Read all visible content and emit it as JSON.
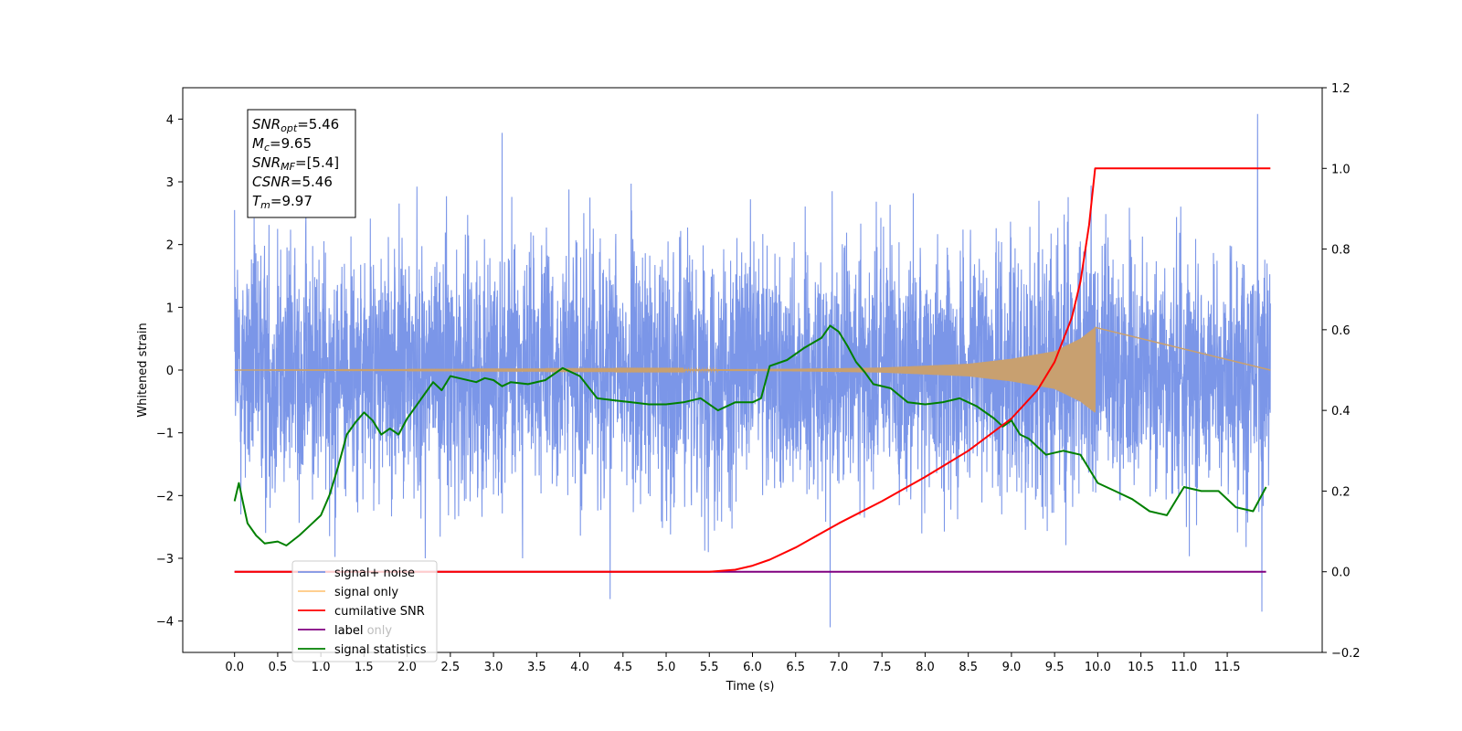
{
  "chart_data": {
    "type": "line",
    "title": "",
    "xlabel": "Time (s)",
    "ylabel": "Whitened strain",
    "xlim": [
      -0.6,
      12.6
    ],
    "ylim": [
      -4.5,
      4.5
    ],
    "y2lim": [
      -0.2,
      1.2
    ],
    "x_ticks": [
      "0.0",
      "0.5",
      "1.0",
      "1.5",
      "2.0",
      "2.5",
      "3.0",
      "3.5",
      "4.0",
      "4.5",
      "5.0",
      "5.5",
      "6.0",
      "6.5",
      "7.0",
      "7.5",
      "8.0",
      "8.5",
      "9.0",
      "9.5",
      "10.0",
      "10.5",
      "11.0",
      "11.5"
    ],
    "y_ticks": [
      "−4",
      "−3",
      "−2",
      "−1",
      "0",
      "1",
      "2",
      "3",
      "4"
    ],
    "y2_ticks": [
      "−0.2",
      "0.0",
      "0.2",
      "0.4",
      "0.6",
      "0.8",
      "1.0",
      "1.2"
    ],
    "info_box": [
      {
        "sym": "SNR",
        "sub": "opt",
        "value": "=5.46"
      },
      {
        "sym": "M",
        "sub": "c",
        "value": "=9.65"
      },
      {
        "sym": "SNR",
        "sub": "MF",
        "value": "=[5.4]"
      },
      {
        "sym": "CSNR",
        "sub": "",
        "value": "=5.46"
      },
      {
        "sym": "T",
        "sub": "m",
        "value": "=9.97"
      }
    ],
    "legend": {
      "placement": "lower-left",
      "entries": [
        {
          "label": "signal+ noise",
          "color": "#7b96e8"
        },
        {
          "label": "signal only",
          "color": "#ffc880"
        },
        {
          "label": "cumilative SNR",
          "color": "#ff0000"
        },
        {
          "label": "label",
          "color": "#800080"
        },
        {
          "label": "signal statistics",
          "color": "#008000"
        }
      ],
      "hidden_text": "label only"
    },
    "series": [
      {
        "name": "signal+ noise",
        "axis": "left",
        "color": "#7b96e8",
        "x_range": [
          0.0,
          12.0
        ],
        "dense_random_amplitude": 1.0,
        "extremes": [
          {
            "x": 3.1,
            "y": 3.78
          },
          {
            "x": 11.85,
            "y": 4.08
          },
          {
            "x": 6.9,
            "y": -4.1
          },
          {
            "x": 11.9,
            "y": -3.85
          },
          {
            "x": 4.35,
            "y": -3.65
          },
          {
            "x": 0.0,
            "y": 2.55
          }
        ]
      },
      {
        "name": "signal only",
        "axis": "left",
        "color": "#c8a070",
        "x_range": [
          0.0,
          9.97
        ],
        "envelope": [
          [
            0.0,
            0.0
          ],
          [
            5.5,
            0.01
          ],
          [
            6.5,
            0.02
          ],
          [
            7.5,
            0.04
          ],
          [
            8.5,
            0.1
          ],
          [
            9.0,
            0.18
          ],
          [
            9.5,
            0.3
          ],
          [
            9.8,
            0.5
          ],
          [
            9.97,
            0.68
          ]
        ]
      },
      {
        "name": "cumilative SNR",
        "axis": "right",
        "color": "#ff0000",
        "x": [
          0.0,
          5.5,
          5.8,
          6.0,
          6.2,
          6.5,
          7.0,
          7.5,
          8.0,
          8.5,
          9.0,
          9.3,
          9.5,
          9.7,
          9.8,
          9.9,
          9.97,
          10.0,
          11.0,
          12.0
        ],
        "values": [
          0.0,
          0.0,
          0.005,
          0.015,
          0.03,
          0.06,
          0.12,
          0.175,
          0.235,
          0.3,
          0.38,
          0.45,
          0.52,
          0.63,
          0.72,
          0.86,
          1.0,
          1.0,
          1.0,
          1.0
        ]
      },
      {
        "name": "label",
        "axis": "right",
        "color": "#800080",
        "x": [
          0.0,
          11.95
        ],
        "values": [
          0.0,
          0.0
        ]
      },
      {
        "name": "signal statistics",
        "axis": "right",
        "color": "#008000",
        "x": [
          0.0,
          0.05,
          0.1,
          0.15,
          0.25,
          0.35,
          0.5,
          0.6,
          0.75,
          0.85,
          1.0,
          1.1,
          1.2,
          1.3,
          1.4,
          1.5,
          1.6,
          1.7,
          1.8,
          1.9,
          2.0,
          2.1,
          2.2,
          2.3,
          2.4,
          2.5,
          2.6,
          2.8,
          2.9,
          3.0,
          3.1,
          3.2,
          3.4,
          3.6,
          3.8,
          4.0,
          4.2,
          4.4,
          4.6,
          4.8,
          5.0,
          5.2,
          5.4,
          5.6,
          5.8,
          6.0,
          6.1,
          6.2,
          6.4,
          6.6,
          6.8,
          6.9,
          7.0,
          7.1,
          7.2,
          7.3,
          7.4,
          7.6,
          7.8,
          8.0,
          8.2,
          8.4,
          8.6,
          8.8,
          8.9,
          9.0,
          9.1,
          9.2,
          9.4,
          9.6,
          9.7,
          9.8,
          10.0,
          10.2,
          10.4,
          10.6,
          10.8,
          11.0,
          11.2,
          11.4,
          11.6,
          11.8,
          11.95
        ],
        "values": [
          0.175,
          0.22,
          0.17,
          0.12,
          0.09,
          0.07,
          0.075,
          0.065,
          0.09,
          0.11,
          0.14,
          0.19,
          0.26,
          0.34,
          0.37,
          0.395,
          0.375,
          0.34,
          0.355,
          0.34,
          0.38,
          0.41,
          0.44,
          0.47,
          0.45,
          0.485,
          0.48,
          0.47,
          0.48,
          0.475,
          0.46,
          0.47,
          0.465,
          0.475,
          0.505,
          0.485,
          0.43,
          0.425,
          0.42,
          0.415,
          0.415,
          0.42,
          0.43,
          0.4,
          0.42,
          0.42,
          0.43,
          0.51,
          0.525,
          0.555,
          0.58,
          0.61,
          0.595,
          0.56,
          0.52,
          0.495,
          0.465,
          0.455,
          0.42,
          0.415,
          0.42,
          0.43,
          0.41,
          0.38,
          0.36,
          0.375,
          0.34,
          0.33,
          0.29,
          0.3,
          0.295,
          0.29,
          0.22,
          0.2,
          0.18,
          0.15,
          0.14,
          0.21,
          0.2,
          0.2,
          0.16,
          0.15,
          0.21
        ]
      }
    ]
  }
}
